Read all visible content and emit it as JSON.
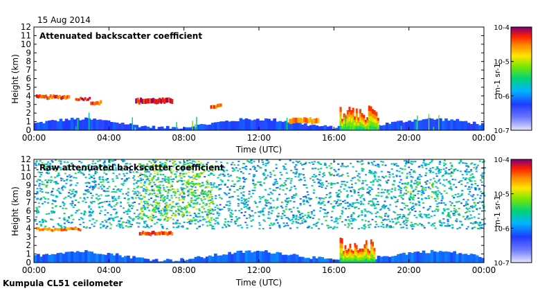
{
  "date": "15 Aug 2014",
  "footer": "Kumpula CL51 ceilometer",
  "chart_data": [
    {
      "type": "heatmap",
      "title": "Attenuated backscatter coefficient",
      "xlabel": "Time (UTC)",
      "ylabel": "Height (km)",
      "xticks": [
        "00:00",
        "04:00",
        "08:00",
        "12:00",
        "16:00",
        "20:00",
        "00:00"
      ],
      "yticks": [
        "0",
        "1",
        "2",
        "3",
        "4",
        "5",
        "6",
        "7",
        "8",
        "9",
        "10",
        "11",
        "12"
      ],
      "xlim_hours": [
        0,
        24
      ],
      "ylim_km": [
        0,
        12
      ],
      "features": [
        {
          "kind": "layer",
          "t0": 0.1,
          "t1": 1.9,
          "h0": 3.65,
          "h1": 4.05,
          "level": 0.9
        },
        {
          "kind": "layer",
          "t0": 2.2,
          "t1": 3.0,
          "h0": 3.5,
          "h1": 3.8,
          "level": 0.95
        },
        {
          "kind": "layer",
          "t0": 3.0,
          "t1": 3.6,
          "h0": 3.0,
          "h1": 3.4,
          "level": 0.9
        },
        {
          "kind": "layer",
          "t0": 5.4,
          "t1": 7.4,
          "h0": 3.1,
          "h1": 3.7,
          "level": 0.95
        },
        {
          "kind": "layer",
          "t0": 9.4,
          "t1": 10.0,
          "h0": 2.6,
          "h1": 3.0,
          "level": 0.9
        },
        {
          "kind": "layer",
          "t0": 13.6,
          "t1": 15.2,
          "h0": 0.8,
          "h1": 1.4,
          "level": 0.85
        },
        {
          "kind": "plume",
          "t0": 16.3,
          "t1": 18.4,
          "h0": 0.0,
          "h1": 3.0,
          "level": 0.8
        },
        {
          "kind": "spikes",
          "t0": 0.3,
          "t1": 23.0,
          "h0": 0.3,
          "h1": 2.2,
          "level": 0.6
        }
      ],
      "colorbar": {
        "label": "m-1 sr-1",
        "ticks": [
          "10-4",
          "10-5",
          "10-6",
          "10-7"
        ]
      }
    },
    {
      "type": "heatmap",
      "title": "Raw attenuated backscatter coefficient",
      "xlabel": "Time (UTC)",
      "ylabel": "Height (km)",
      "xticks": [
        "00:00",
        "04:00",
        "08:00",
        "12:00",
        "16:00",
        "20:00",
        "00:00"
      ],
      "yticks": [
        "0",
        "1",
        "2",
        "3",
        "4",
        "5",
        "6",
        "7",
        "8",
        "9",
        "10",
        "11",
        "12"
      ],
      "xlim_hours": [
        0,
        24
      ],
      "ylim_km": [
        0,
        12
      ],
      "features": [
        {
          "kind": "noise",
          "t0": 0,
          "t1": 24,
          "h0": 4.0,
          "h1": 12,
          "level": 0.45
        },
        {
          "kind": "noise",
          "t0": 5.5,
          "t1": 9.5,
          "h0": 5.0,
          "h1": 12,
          "level": 0.62
        },
        {
          "kind": "noise",
          "t0": 19.5,
          "t1": 21.5,
          "h0": 7.5,
          "h1": 9.5,
          "level": 0.55
        },
        {
          "kind": "layer",
          "t0": 0.1,
          "t1": 2.5,
          "h0": 3.7,
          "h1": 4.0,
          "level": 0.85
        },
        {
          "kind": "layer",
          "t0": 5.6,
          "t1": 7.4,
          "h0": 3.2,
          "h1": 3.6,
          "level": 0.9
        },
        {
          "kind": "plume",
          "t0": 16.3,
          "t1": 18.2,
          "h0": 0.0,
          "h1": 3.0,
          "level": 0.8
        }
      ],
      "colorbar": {
        "label": "m-1 sr-1",
        "ticks": [
          "10-4",
          "10-5",
          "10-6",
          "10-7"
        ]
      }
    }
  ]
}
